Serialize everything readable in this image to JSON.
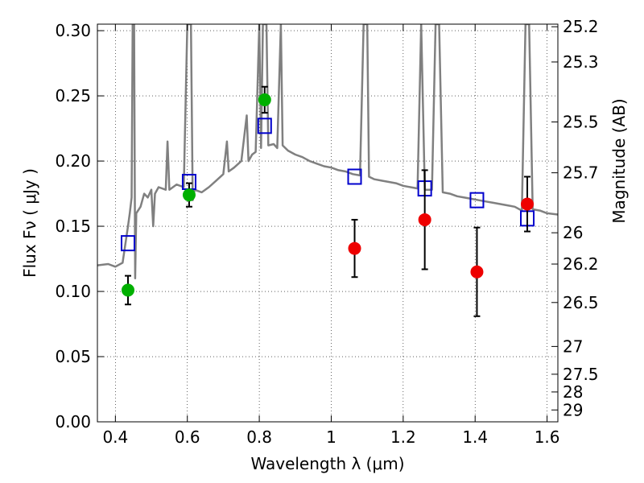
{
  "chart_data": {
    "type": "scatter",
    "xlabel": "Wavelength  λ (μm)",
    "ylabel_left": "Flux  Fν  ( μJy )",
    "ylabel_right": "Magnitude (AB)",
    "xlim": [
      0.35,
      1.63
    ],
    "ylim": [
      0.0,
      0.305
    ],
    "grid": true,
    "x_ticks": [
      0.4,
      0.6,
      0.8,
      1.0,
      1.2,
      1.4,
      1.6
    ],
    "x_tick_labels": [
      "0.4",
      "0.6",
      "0.8",
      "1",
      "1.2",
      "1.4",
      "1.6"
    ],
    "y_ticks": [
      0.0,
      0.05,
      0.1,
      0.15,
      0.2,
      0.25,
      0.3
    ],
    "y_tick_labels": [
      "0.00",
      "0.05",
      "0.10",
      "0.15",
      "0.20",
      "0.25",
      "0.30"
    ],
    "right_ticks": [
      {
        "label": "25.2",
        "flux": 0.303
      },
      {
        "label": "25.3",
        "flux": 0.276
      },
      {
        "label": "25.5",
        "flux": 0.23
      },
      {
        "label": "25.7",
        "flux": 0.191
      },
      {
        "label": "26",
        "flux": 0.145
      },
      {
        "label": "26.2",
        "flux": 0.121
      },
      {
        "label": "26.5",
        "flux": 0.0915
      },
      {
        "label": "27",
        "flux": 0.0578
      },
      {
        "label": "27.5",
        "flux": 0.0365
      },
      {
        "label": "28",
        "flux": 0.0229
      },
      {
        "label": "29",
        "flux": 0.0091
      }
    ],
    "series": [
      {
        "kind": "line",
        "color": "#808080",
        "points": [
          [
            0.35,
            0.12
          ],
          [
            0.38,
            0.121
          ],
          [
            0.4,
            0.119
          ],
          [
            0.42,
            0.122
          ],
          [
            0.435,
            0.15
          ],
          [
            0.44,
            0.16
          ],
          [
            0.445,
            0.172
          ],
          [
            0.448,
            0.305
          ],
          [
            0.452,
            0.305
          ],
          [
            0.455,
            0.11
          ],
          [
            0.458,
            0.16
          ],
          [
            0.47,
            0.165
          ],
          [
            0.48,
            0.175
          ],
          [
            0.49,
            0.172
          ],
          [
            0.5,
            0.178
          ],
          [
            0.505,
            0.15
          ],
          [
            0.51,
            0.175
          ],
          [
            0.52,
            0.18
          ],
          [
            0.54,
            0.178
          ],
          [
            0.545,
            0.215
          ],
          [
            0.55,
            0.178
          ],
          [
            0.57,
            0.182
          ],
          [
            0.59,
            0.18
          ],
          [
            0.6,
            0.305
          ],
          [
            0.61,
            0.305
          ],
          [
            0.615,
            0.17
          ],
          [
            0.62,
            0.178
          ],
          [
            0.64,
            0.176
          ],
          [
            0.66,
            0.18
          ],
          [
            0.68,
            0.185
          ],
          [
            0.7,
            0.19
          ],
          [
            0.71,
            0.215
          ],
          [
            0.715,
            0.192
          ],
          [
            0.73,
            0.195
          ],
          [
            0.75,
            0.2
          ],
          [
            0.765,
            0.235
          ],
          [
            0.77,
            0.2
          ],
          [
            0.78,
            0.205
          ],
          [
            0.79,
            0.207
          ],
          [
            0.8,
            0.305
          ],
          [
            0.805,
            0.21
          ],
          [
            0.81,
            0.305
          ],
          [
            0.82,
            0.305
          ],
          [
            0.825,
            0.212
          ],
          [
            0.84,
            0.213
          ],
          [
            0.85,
            0.21
          ],
          [
            0.86,
            0.305
          ],
          [
            0.865,
            0.212
          ],
          [
            0.88,
            0.208
          ],
          [
            0.9,
            0.205
          ],
          [
            0.92,
            0.203
          ],
          [
            0.94,
            0.2
          ],
          [
            0.96,
            0.198
          ],
          [
            0.98,
            0.196
          ],
          [
            1.0,
            0.195
          ],
          [
            1.02,
            0.193
          ],
          [
            1.04,
            0.192
          ],
          [
            1.06,
            0.19
          ],
          [
            1.08,
            0.189
          ],
          [
            1.09,
            0.305
          ],
          [
            1.1,
            0.305
          ],
          [
            1.105,
            0.188
          ],
          [
            1.12,
            0.186
          ],
          [
            1.14,
            0.185
          ],
          [
            1.16,
            0.184
          ],
          [
            1.18,
            0.183
          ],
          [
            1.2,
            0.181
          ],
          [
            1.22,
            0.18
          ],
          [
            1.24,
            0.179
          ],
          [
            1.25,
            0.305
          ],
          [
            1.26,
            0.178
          ],
          [
            1.28,
            0.178
          ],
          [
            1.29,
            0.305
          ],
          [
            1.3,
            0.305
          ],
          [
            1.31,
            0.176
          ],
          [
            1.33,
            0.175
          ],
          [
            1.35,
            0.173
          ],
          [
            1.37,
            0.172
          ],
          [
            1.39,
            0.171
          ],
          [
            1.41,
            0.17
          ],
          [
            1.43,
            0.169
          ],
          [
            1.45,
            0.168
          ],
          [
            1.47,
            0.167
          ],
          [
            1.49,
            0.166
          ],
          [
            1.51,
            0.165
          ],
          [
            1.53,
            0.162
          ],
          [
            1.54,
            0.305
          ],
          [
            1.55,
            0.305
          ],
          [
            1.56,
            0.163
          ],
          [
            1.58,
            0.162
          ],
          [
            1.6,
            0.16
          ],
          [
            1.63,
            0.159
          ]
        ]
      },
      {
        "kind": "squares",
        "color": "#0000cc",
        "points": [
          [
            0.435,
            0.137
          ],
          [
            0.605,
            0.184
          ],
          [
            0.815,
            0.227
          ],
          [
            1.065,
            0.188
          ],
          [
            1.26,
            0.179
          ],
          [
            1.405,
            0.17
          ],
          [
            1.545,
            0.156
          ]
        ]
      },
      {
        "kind": "points",
        "color": "#00b000",
        "points": [
          {
            "x": 0.435,
            "y": 0.101,
            "err": 0.011
          },
          {
            "x": 0.605,
            "y": 0.174,
            "err": 0.009
          },
          {
            "x": 0.815,
            "y": 0.247,
            "err": 0.01
          }
        ]
      },
      {
        "kind": "points",
        "color": "#ee0000",
        "points": [
          {
            "x": 1.065,
            "y": 0.133,
            "err": 0.022
          },
          {
            "x": 1.26,
            "y": 0.155,
            "err": 0.038
          },
          {
            "x": 1.405,
            "y": 0.115,
            "err": 0.034
          },
          {
            "x": 1.545,
            "y": 0.167,
            "err": 0.021
          }
        ]
      }
    ]
  }
}
